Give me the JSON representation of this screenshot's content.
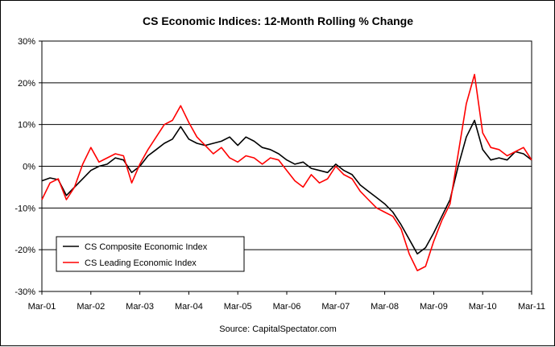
{
  "chart_data": {
    "type": "line",
    "title": "CS Economic Indices: 12-Month Rolling %  Change",
    "source": "Source: CapitalSpectator.com",
    "xlabel": "",
    "ylabel": "",
    "ylim": [
      -30,
      30
    ],
    "y_ticks": [
      "30%",
      "20%",
      "10%",
      "0%",
      "-10%",
      "-20%",
      "-30%"
    ],
    "x_ticks": [
      "Mar-01",
      "Mar-02",
      "Mar-03",
      "Mar-04",
      "Mar-05",
      "Mar-06",
      "Mar-07",
      "Mar-08",
      "Mar-09",
      "Mar-10",
      "Mar-11"
    ],
    "x_range_months": [
      0,
      120
    ],
    "grid": "horizontal",
    "legend_position": "bottom-left",
    "series": [
      {
        "name": "CS Composite Economic Index",
        "color": "#000000",
        "x": [
          0,
          2,
          4,
          6,
          8,
          10,
          12,
          14,
          16,
          18,
          20,
          22,
          24,
          26,
          28,
          30,
          32,
          34,
          36,
          38,
          40,
          42,
          44,
          46,
          48,
          50,
          52,
          54,
          56,
          58,
          60,
          62,
          64,
          66,
          68,
          70,
          72,
          74,
          76,
          78,
          80,
          82,
          84,
          86,
          88,
          90,
          92,
          94,
          96,
          98,
          100,
          102,
          104,
          106,
          108,
          110,
          112,
          114,
          116,
          118,
          120
        ],
        "values": [
          -3.5,
          -2.8,
          -3.2,
          -7.0,
          -5.0,
          -3.0,
          -1.0,
          0.0,
          0.5,
          2.0,
          1.5,
          -1.5,
          0.0,
          2.5,
          4.0,
          5.5,
          6.5,
          9.5,
          6.5,
          5.5,
          5.0,
          5.5,
          6.0,
          7.0,
          5.0,
          7.0,
          6.0,
          4.5,
          4.0,
          3.0,
          1.5,
          0.5,
          1.0,
          -0.5,
          -1.0,
          -1.5,
          0.5,
          -1.0,
          -2.0,
          -4.5,
          -6.0,
          -7.5,
          -9.0,
          -11.0,
          -14.0,
          -17.5,
          -21.0,
          -19.5,
          -16.0,
          -12.0,
          -8.0,
          0.0,
          7.0,
          11.0,
          4.0,
          1.5,
          2.0,
          1.5,
          3.5,
          3.0,
          1.5
        ]
      },
      {
        "name": "CS Leading Economic Index",
        "color": "#ff0000",
        "x": [
          0,
          2,
          4,
          6,
          8,
          10,
          12,
          14,
          16,
          18,
          20,
          22,
          24,
          26,
          28,
          30,
          32,
          34,
          36,
          38,
          40,
          42,
          44,
          46,
          48,
          50,
          52,
          54,
          56,
          58,
          60,
          62,
          64,
          66,
          68,
          70,
          72,
          74,
          76,
          78,
          80,
          82,
          84,
          86,
          88,
          90,
          92,
          94,
          96,
          98,
          100,
          102,
          104,
          106,
          108,
          110,
          112,
          114,
          116,
          118,
          120
        ],
        "values": [
          -8.0,
          -4.0,
          -3.0,
          -8.0,
          -5.0,
          0.5,
          4.5,
          1.0,
          2.0,
          3.0,
          2.5,
          -4.0,
          0.5,
          4.0,
          7.0,
          10.0,
          11.0,
          14.5,
          10.5,
          7.0,
          5.0,
          3.0,
          4.5,
          2.0,
          1.0,
          2.5,
          2.0,
          0.5,
          2.0,
          1.5,
          -1.0,
          -3.5,
          -5.0,
          -2.0,
          -4.0,
          -3.0,
          0.0,
          -2.0,
          -3.0,
          -6.0,
          -8.0,
          -10.0,
          -11.0,
          -12.0,
          -15.0,
          -21.0,
          -25.0,
          -24.0,
          -18.0,
          -13.0,
          -9.0,
          3.0,
          15.0,
          22.0,
          8.0,
          4.5,
          4.0,
          2.5,
          3.5,
          4.5,
          1.5
        ]
      }
    ]
  }
}
